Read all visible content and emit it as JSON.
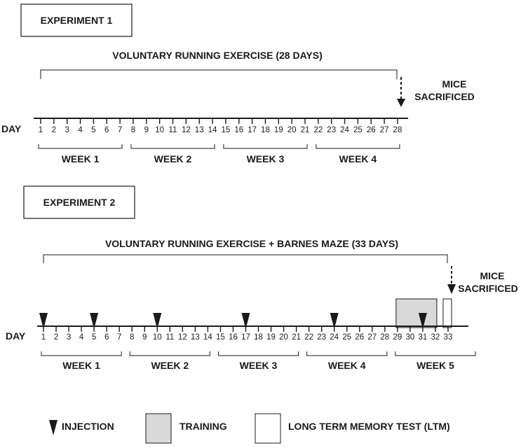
{
  "experiment1": {
    "title": "EXPERIMENT 1",
    "bracket_label": "VOLUNTARY RUNNING EXERCISE (28 DAYS)",
    "end_label_line1": "MICE",
    "end_label_line2": "SACRIFICED",
    "day_label": "DAY",
    "days": [
      "1",
      "2",
      "3",
      "4",
      "5",
      "6",
      "7",
      "8",
      "9",
      "10",
      "11",
      "12",
      "13",
      "14",
      "15",
      "16",
      "17",
      "18",
      "19",
      "20",
      "21",
      "22",
      "23",
      "24",
      "25",
      "26",
      "27",
      "28"
    ],
    "weeks": [
      "WEEK 1",
      "WEEK 2",
      "WEEK 3",
      "WEEK 4"
    ]
  },
  "experiment2": {
    "title": "EXPERIMENT 2",
    "bracket_label": "VOLUNTARY RUNNING EXERCISE + BARNES MAZE (33 DAYS)",
    "end_label_line1": "MICE",
    "end_label_line2": "SACRIFICED",
    "day_label": "DAY",
    "days": [
      "1",
      "2",
      "3",
      "4",
      "5",
      "6",
      "7",
      "8",
      "9",
      "10",
      "11",
      "12",
      "13",
      "14",
      "15",
      "16",
      "17",
      "18",
      "19",
      "20",
      "21",
      "22",
      "23",
      "24",
      "25",
      "26",
      "27",
      "28",
      "29",
      "30",
      "31",
      "32",
      "33"
    ],
    "weeks": [
      "WEEK 1",
      "WEEK 2",
      "WEEK 3",
      "WEEK 4",
      "WEEK 5"
    ],
    "injection_days": [
      1,
      5,
      10,
      17,
      24,
      31
    ],
    "training_days": [
      29,
      32
    ],
    "ltm_day": 33
  },
  "legend": {
    "injection": "INJECTION",
    "training": "TRAINING",
    "ltm": "LONG TERM MEMORY TEST (LTM)"
  },
  "colors": {
    "ink": "#1a1a1a",
    "training_fill": "#d9d9d9",
    "ltm_fill": "#ffffff"
  }
}
